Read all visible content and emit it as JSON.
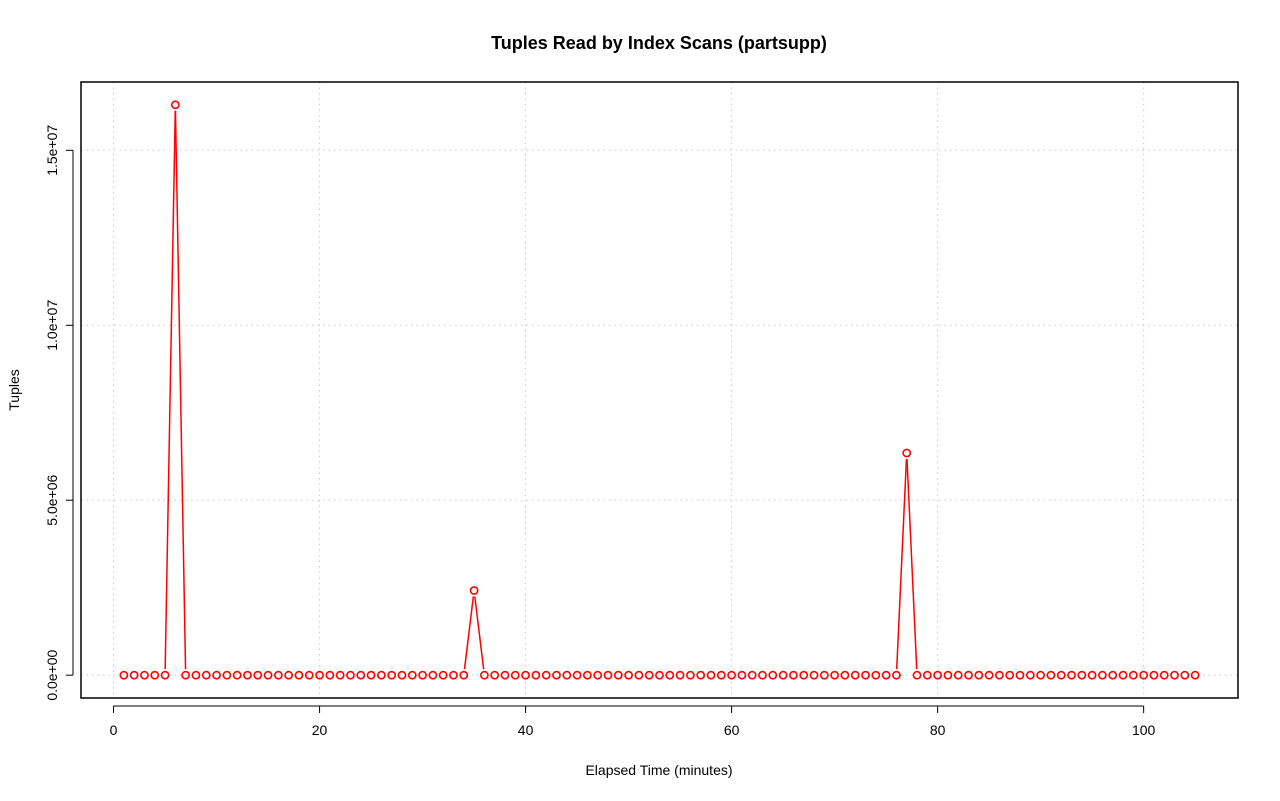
{
  "chart_data": {
    "type": "line",
    "title": "Tuples Read by Index Scans (partsupp)",
    "xlabel": "Elapsed Time (minutes)",
    "ylabel": "Tuples",
    "xlim": [
      1,
      105
    ],
    "ylim": [
      0,
      16300000
    ],
    "x_ticks": [
      0,
      20,
      40,
      60,
      80,
      100
    ],
    "x_tick_labels": [
      "0",
      "20",
      "40",
      "60",
      "80",
      "100"
    ],
    "y_ticks": [
      0,
      5000000,
      10000000,
      15000000
    ],
    "y_tick_labels": [
      "0.0e+00",
      "5.0e+06",
      "1.0e+07",
      "1.5e+07"
    ],
    "grid": true,
    "legend": "none",
    "series": [
      {
        "color": "#ff0000",
        "marker": "open-circle",
        "x": [
          1,
          2,
          3,
          4,
          5,
          6,
          7,
          8,
          9,
          10,
          11,
          12,
          13,
          14,
          15,
          16,
          17,
          18,
          19,
          20,
          21,
          22,
          23,
          24,
          25,
          26,
          27,
          28,
          29,
          30,
          31,
          32,
          33,
          34,
          35,
          36,
          37,
          38,
          39,
          40,
          41,
          42,
          43,
          44,
          45,
          46,
          47,
          48,
          49,
          50,
          51,
          52,
          53,
          54,
          55,
          56,
          57,
          58,
          59,
          60,
          61,
          62,
          63,
          64,
          65,
          66,
          67,
          68,
          69,
          70,
          71,
          72,
          73,
          74,
          75,
          76,
          77,
          78,
          79,
          80,
          81,
          82,
          83,
          84,
          85,
          86,
          87,
          88,
          89,
          90,
          91,
          92,
          93,
          94,
          95,
          96,
          97,
          98,
          99,
          100,
          101,
          102,
          103,
          104,
          105
        ],
        "values": [
          0,
          0,
          0,
          0,
          0,
          16300000,
          0,
          0,
          0,
          0,
          0,
          0,
          0,
          0,
          0,
          0,
          0,
          0,
          0,
          0,
          0,
          0,
          0,
          0,
          0,
          0,
          0,
          0,
          0,
          0,
          0,
          0,
          0,
          0,
          2420000,
          0,
          0,
          0,
          0,
          0,
          0,
          0,
          0,
          0,
          0,
          0,
          0,
          0,
          0,
          0,
          0,
          0,
          0,
          0,
          0,
          0,
          0,
          0,
          0,
          0,
          0,
          0,
          0,
          0,
          0,
          0,
          0,
          0,
          0,
          0,
          0,
          0,
          0,
          0,
          0,
          0,
          6350000,
          0,
          0,
          0,
          0,
          0,
          0,
          0,
          0,
          0,
          0,
          0,
          0,
          0,
          0,
          0,
          0,
          0,
          0,
          0,
          0,
          0,
          0,
          0,
          0,
          0,
          0,
          0,
          0
        ]
      }
    ]
  }
}
